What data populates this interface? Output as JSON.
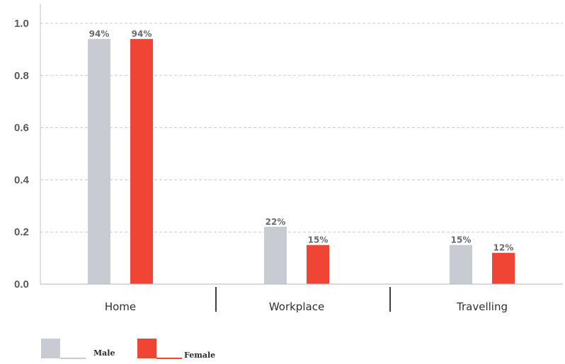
{
  "chart_data": {
    "type": "bar",
    "categories": [
      "Home",
      "Workplace",
      "Travelling"
    ],
    "series": [
      {
        "name": "Male",
        "values": [
          0.94,
          0.22,
          0.15
        ],
        "labels": [
          "94%",
          "22%",
          "15%"
        ],
        "color": "#c9cbd3"
      },
      {
        "name": "Female",
        "values": [
          0.94,
          0.15,
          0.12
        ],
        "labels": [
          "94%",
          "15%",
          "12%"
        ],
        "color": "#f04434"
      }
    ],
    "yticks": [
      "0.0",
      "0.2",
      "0.4",
      "0.6",
      "0.8",
      "1.0"
    ],
    "ylim": [
      0,
      1.0
    ],
    "grid": true,
    "legend": "bottom-left"
  }
}
